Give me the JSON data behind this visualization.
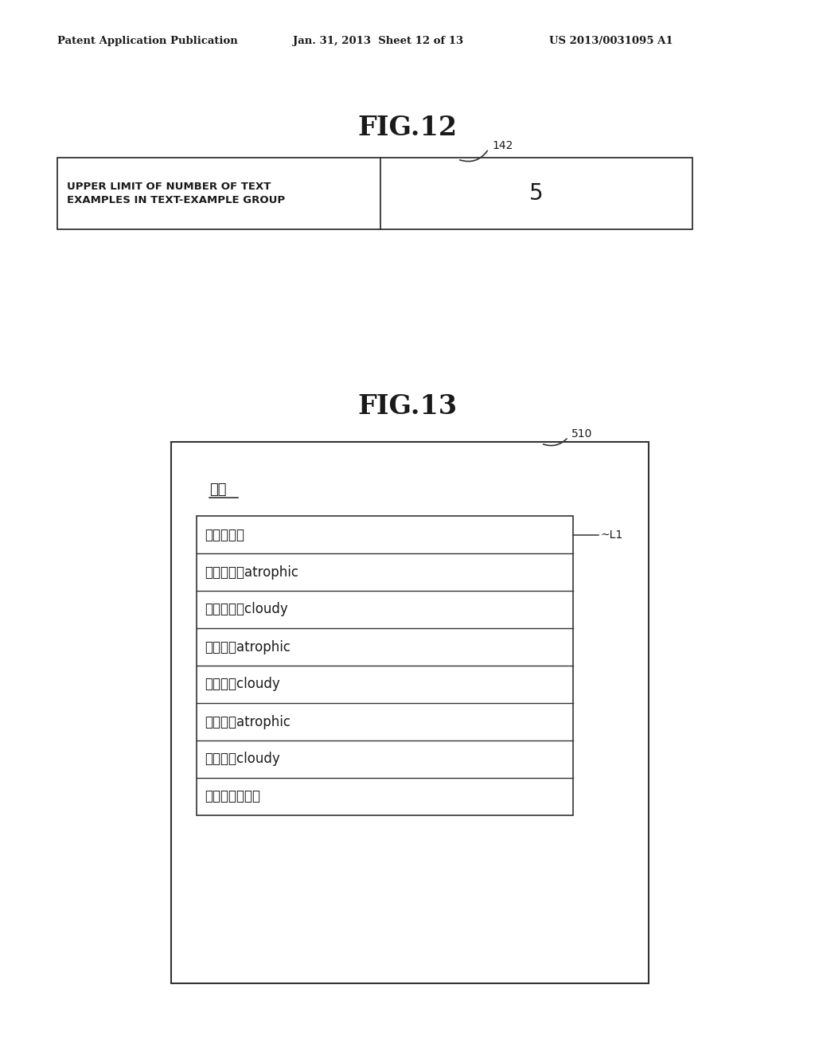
{
  "header_left": "Patent Application Publication",
  "header_mid": "Jan. 31, 2013  Sheet 12 of 13",
  "header_right": "US 2013/0031095 A1",
  "fig12_title": "FIG.12",
  "fig12_label": "142",
  "fig12_cell_left": "UPPER LIMIT OF NUMBER OF TEXT\nEXAMPLES IN TEXT-EXAMPLE GROUP",
  "fig12_cell_right": "5",
  "fig13_title": "FIG.13",
  "fig13_label": "510",
  "fig13_header": "こま",
  "fig13_L1_label": "~L1",
  "fig13_rows": [
    "鼓膜：正常",
    "鼓膜：両偈atrophic",
    "鼓膜：両偈cloudy",
    "鼓膜：左atrophic",
    "鼓膜：左cloudy",
    "鼓膜：右atrophic",
    "鼓膜：右cloudy",
    "鼓膜：異常なし"
  ],
  "bg_color": "#ffffff",
  "text_color": "#1a1a1a",
  "line_color": "#333333",
  "header_fontsize": 9.5,
  "fig_title_fontsize": 24,
  "table_text_fontsize": 9.5,
  "table_value_fontsize": 20,
  "label_fontsize": 10,
  "row_text_fontsize": 12,
  "header_text_fontsize": 13
}
